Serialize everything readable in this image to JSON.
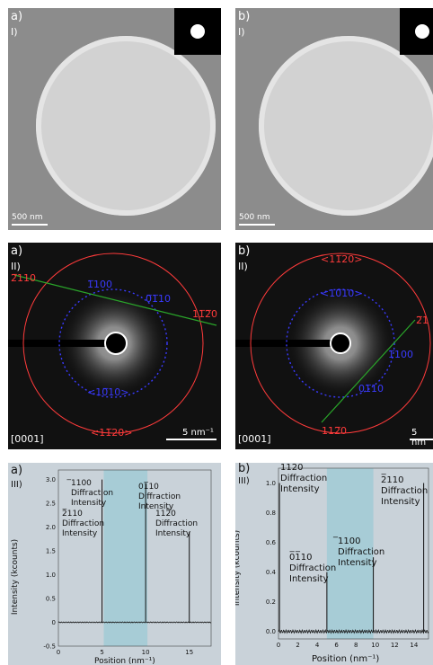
{
  "row1": {
    "left": {
      "tag": "a)",
      "sub": "I)",
      "scalebar": "500 nm"
    },
    "right": {
      "tag": "b)",
      "sub": "I)",
      "scalebar": "500 nm"
    }
  },
  "row2": {
    "left": {
      "tag": "a)",
      "sub": "II)",
      "zone": "[0001]",
      "scalebar": "5 nm⁻¹",
      "labels": {
        "a": "2̅110",
        "b": "1̅100",
        "c": "0̅1̅10",
        "d": "11̅2̅0",
        "e": "<10̅10>",
        "f": "<11̅20>"
      }
    },
    "right": {
      "tag": "b)",
      "sub": "II)",
      "zone": "[0001]",
      "scalebar": "5 nm",
      "labels": {
        "a": "<11̅20>",
        "b": "<10̅10>",
        "c": "2̅1",
        "d": "1̅100",
        "e": "01̅10",
        "f": "112̅0"
      }
    }
  },
  "row3": {
    "left": {
      "tag": "a)",
      "sub": "III)",
      "ylabel": "Intensity (kcounts)",
      "xlabel": "Position (nm⁻¹)",
      "annotations": [
        "̅1100 Diffraction Intensity",
        "01̅10 Diffraction Intensity",
        "2̅110 Diffraction Intensity",
        "112̅0 Diffraction Intensity"
      ]
    },
    "right": {
      "tag": "b)",
      "sub": "III)",
      "ylabel": "Intensity (kcounts)",
      "xlabel": "Position (nm⁻¹)",
      "annotations": [
        "112̅0 Diffraction Intensity",
        "2̅110 Diffraction Intensity",
        "0̅1̅10 Diffraction Intensity",
        "̅1100 Diffraction Intensity"
      ]
    }
  },
  "chart_data": [
    {
      "type": "line",
      "title": "",
      "xlabel": "Position (nm⁻¹)",
      "ylabel": "Intensity (kcounts)",
      "xlim": [
        0,
        17.5
      ],
      "ylim": [
        -0.5,
        3.2
      ],
      "x_ticks": [
        "0",
        "5",
        "10",
        "15"
      ],
      "y_ticks": [
        "-0.5",
        "0",
        "0.5",
        "1.0",
        "1.5",
        "2.0",
        "2.5",
        "3.0"
      ],
      "peaks": [
        {
          "x": 5.0,
          "y": 3.0
        },
        {
          "x": 10.0,
          "y": 2.9
        },
        {
          "x": 15.0,
          "y": 1.9
        }
      ],
      "shaded_x": [
        5.2,
        10.2
      ]
    },
    {
      "type": "line",
      "title": "",
      "xlabel": "Position (nm⁻¹)",
      "ylabel": "Intensity (kcounts)",
      "xlim": [
        0,
        15.5
      ],
      "ylim": [
        -0.05,
        1.1
      ],
      "x_ticks": [
        "0",
        "2",
        "4",
        "6",
        "8",
        "10",
        "12",
        "14"
      ],
      "y_ticks": [
        "0.0",
        "0.2",
        "0.4",
        "0.6",
        "0.8",
        "1.0"
      ],
      "peaks": [
        {
          "x": 0.1,
          "y": 1.0
        },
        {
          "x": 5.0,
          "y": 0.4
        },
        {
          "x": 9.8,
          "y": 0.5
        },
        {
          "x": 15.0,
          "y": 1.0
        }
      ],
      "shaded_x": [
        5.0,
        9.8
      ]
    }
  ]
}
